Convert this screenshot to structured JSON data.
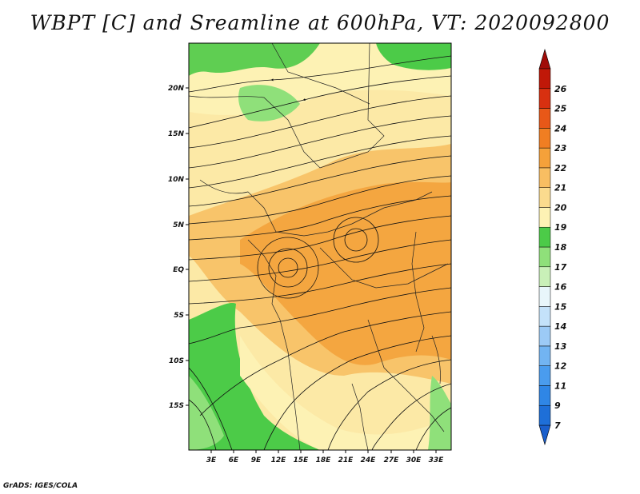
{
  "title": "WBPT [C] and Sreamline at 600hPa, VT: 2020092800",
  "footer": "GrADS: IGES/COLA",
  "map": {
    "lat_labels": [
      "20N",
      "15N",
      "10N",
      "5N",
      "EQ",
      "5S",
      "10S",
      "15S"
    ],
    "lon_labels": [
      "3E",
      "6E",
      "9E",
      "12E",
      "15E",
      "18E",
      "21E",
      "24E",
      "27E",
      "30E",
      "33E"
    ]
  },
  "colorbar": {
    "labels": [
      "7",
      "9",
      "11",
      "12",
      "13",
      "14",
      "15",
      "16",
      "17",
      "18",
      "19",
      "20",
      "21",
      "22",
      "23",
      "24",
      "25",
      "26"
    ],
    "colors": [
      "#1e6fd8",
      "#2f86e6",
      "#4a9cee",
      "#72b4f2",
      "#9ccaf6",
      "#c4e2fa",
      "#e8f6fb",
      "#c9f0b8",
      "#8fe07a",
      "#4ccb48",
      "#fdf2b4",
      "#fbdb8e",
      "#f8be62",
      "#f5a13a",
      "#f07e22",
      "#e85818",
      "#d83010",
      "#c01808"
    ],
    "top_arrow_color": "#a00c08",
    "bottom_arrow_color": "#1a5fcc"
  }
}
